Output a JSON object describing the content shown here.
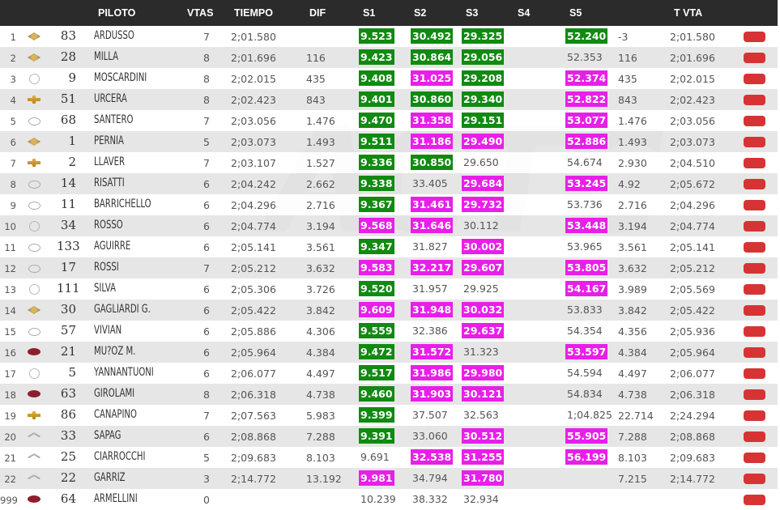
{
  "headers": {
    "piloto": "PILOTO",
    "vtas": "VTAS",
    "tiempo": "TIEMPO",
    "dif": "DIF",
    "s1": "S1",
    "s2": "S2",
    "s3": "S3",
    "s4": "S4",
    "s5": "S5",
    "tvta": "T VTA"
  },
  "colors": {
    "best_green": "#118a11",
    "personal_magenta": "#e81fe8",
    "flag_red": "#d63434",
    "header_bg": "#2b2b2b"
  },
  "rows": [
    {
      "pos": "1",
      "brand": "renault",
      "num": "83",
      "name": "ARDUSSO",
      "vtas": "7",
      "tiempo": "2;01.580",
      "dif": "",
      "s1": "9.523",
      "s1c": "g",
      "s2": "30.492",
      "s2c": "g",
      "s3": "29.325",
      "s3c": "g",
      "s5": "52.240",
      "s5c": "g",
      "x1": "-3",
      "tvta": "2;01.580"
    },
    {
      "pos": "2",
      "brand": "renault",
      "num": "28",
      "name": "MILLA",
      "vtas": "8",
      "tiempo": "2;01.696",
      "dif": "116",
      "s1": "9.423",
      "s1c": "g",
      "s2": "30.864",
      "s2c": "g",
      "s3": "29.056",
      "s3c": "g",
      "s5": "52.353",
      "s5c": "n",
      "x1": "116",
      "tvta": "2;01.696"
    },
    {
      "pos": "3",
      "brand": "vw",
      "num": "9",
      "name": "MOSCARDINI",
      "vtas": "8",
      "tiempo": "2;02.015",
      "dif": "435",
      "s1": "9.408",
      "s1c": "g",
      "s2": "31.025",
      "s2c": "m",
      "s3": "29.208",
      "s3c": "g",
      "s5": "52.374",
      "s5c": "m",
      "x1": "435",
      "tvta": "2;02.015"
    },
    {
      "pos": "4",
      "brand": "chevrolet",
      "num": "51",
      "name": "URCERA",
      "vtas": "8",
      "tiempo": "2;02.423",
      "dif": "843",
      "s1": "9.401",
      "s1c": "g",
      "s2": "30.860",
      "s2c": "g",
      "s3": "29.340",
      "s3c": "g",
      "s5": "52.822",
      "s5c": "m",
      "x1": "843",
      "tvta": "2;02.423"
    },
    {
      "pos": "5",
      "brand": "toyota",
      "num": "68",
      "name": "SANTERO",
      "vtas": "7",
      "tiempo": "2;03.056",
      "dif": "1.476",
      "s1": "9.470",
      "s1c": "g",
      "s2": "31.358",
      "s2c": "m",
      "s3": "29.151",
      "s3c": "g",
      "s5": "53.077",
      "s5c": "m",
      "x1": "1.476",
      "tvta": "2;03.056"
    },
    {
      "pos": "6",
      "brand": "renault",
      "num": "1",
      "name": "PERNIA",
      "vtas": "5",
      "tiempo": "2;03.073",
      "dif": "1.493",
      "s1": "9.511",
      "s1c": "g",
      "s2": "31.186",
      "s2c": "m",
      "s3": "29.490",
      "s3c": "m",
      "s5": "52.886",
      "s5c": "m",
      "x1": "1.493",
      "tvta": "2;03.073"
    },
    {
      "pos": "7",
      "brand": "chevrolet",
      "num": "2",
      "name": "LLAVER",
      "vtas": "7",
      "tiempo": "2;03.107",
      "dif": "1.527",
      "s1": "9.336",
      "s1c": "g",
      "s2": "30.850",
      "s2c": "g",
      "s3": "29.650",
      "s3c": "n",
      "s5": "54.674",
      "s5c": "n",
      "x1": "2.930",
      "tvta": "2;04.510"
    },
    {
      "pos": "8",
      "brand": "toyota",
      "num": "14",
      "name": "RISATTI",
      "vtas": "6",
      "tiempo": "2;04.242",
      "dif": "2.662",
      "s1": "9.338",
      "s1c": "g",
      "s2": "33.405",
      "s2c": "n",
      "s3": "29.684",
      "s3c": "m",
      "s5": "53.245",
      "s5c": "m",
      "x1": "4.92",
      "tvta": "2;05.672"
    },
    {
      "pos": "9",
      "brand": "toyota",
      "num": "11",
      "name": "BARRICHELLO",
      "vtas": "6",
      "tiempo": "2;04.296",
      "dif": "2.716",
      "s1": "9.367",
      "s1c": "g",
      "s2": "31.461",
      "s2c": "m",
      "s3": "29.732",
      "s3c": "m",
      "s5": "53.736",
      "s5c": "n",
      "x1": "2.716",
      "tvta": "2;04.296"
    },
    {
      "pos": "10",
      "brand": "vw",
      "num": "34",
      "name": "ROSSO",
      "vtas": "6",
      "tiempo": "2;04.774",
      "dif": "3.194",
      "s1": "9.568",
      "s1c": "m",
      "s2": "31.646",
      "s2c": "m",
      "s3": "30.112",
      "s3c": "n",
      "s5": "53.448",
      "s5c": "m",
      "x1": "3.194",
      "tvta": "2;04.774"
    },
    {
      "pos": "11",
      "brand": "toyota",
      "num": "133",
      "name": "AGUIRRE",
      "vtas": "6",
      "tiempo": "2;05.141",
      "dif": "3.561",
      "s1": "9.347",
      "s1c": "g",
      "s2": "31.827",
      "s2c": "n",
      "s3": "30.002",
      "s3c": "m",
      "s5": "53.965",
      "s5c": "n",
      "x1": "3.561",
      "tvta": "2;05.141"
    },
    {
      "pos": "12",
      "brand": "toyota",
      "num": "17",
      "name": "ROSSI",
      "vtas": "7",
      "tiempo": "2;05.212",
      "dif": "3.632",
      "s1": "9.583",
      "s1c": "m",
      "s2": "32.217",
      "s2c": "m",
      "s3": "29.607",
      "s3c": "m",
      "s5": "53.805",
      "s5c": "m",
      "x1": "3.632",
      "tvta": "2;05.212"
    },
    {
      "pos": "13",
      "brand": "vw",
      "num": "111",
      "name": "SILVA",
      "vtas": "6",
      "tiempo": "2;05.306",
      "dif": "3.726",
      "s1": "9.520",
      "s1c": "g",
      "s2": "31.957",
      "s2c": "n",
      "s3": "29.925",
      "s3c": "n",
      "s5": "54.167",
      "s5c": "m",
      "x1": "3.989",
      "tvta": "2;05.569"
    },
    {
      "pos": "14",
      "brand": "renault",
      "num": "30",
      "name": "GAGLIARDI G.",
      "vtas": "6",
      "tiempo": "2;05.422",
      "dif": "3.842",
      "s1": "9.609",
      "s1c": "m",
      "s2": "31.948",
      "s2c": "m",
      "s3": "30.032",
      "s3c": "m",
      "s5": "53.833",
      "s5c": "n",
      "x1": "3.842",
      "tvta": "2;05.422"
    },
    {
      "pos": "15",
      "brand": "toyota",
      "num": "57",
      "name": "VIVIAN",
      "vtas": "6",
      "tiempo": "2;05.886",
      "dif": "4.306",
      "s1": "9.559",
      "s1c": "g",
      "s2": "32.386",
      "s2c": "n",
      "s3": "29.637",
      "s3c": "m",
      "s5": "54.354",
      "s5c": "n",
      "x1": "4.356",
      "tvta": "2;05.936"
    },
    {
      "pos": "16",
      "brand": "ford",
      "num": "21",
      "name": "MU?OZ M.",
      "vtas": "6",
      "tiempo": "2;05.964",
      "dif": "4.384",
      "s1": "9.472",
      "s1c": "g",
      "s2": "31.572",
      "s2c": "m",
      "s3": "31.323",
      "s3c": "n",
      "s5": "53.597",
      "s5c": "m",
      "x1": "4.384",
      "tvta": "2;05.964"
    },
    {
      "pos": "17",
      "brand": "vw",
      "num": "5",
      "name": "YANNANTUONI",
      "vtas": "6",
      "tiempo": "2;06.077",
      "dif": "4.497",
      "s1": "9.517",
      "s1c": "g",
      "s2": "31.986",
      "s2c": "m",
      "s3": "29.980",
      "s3c": "m",
      "s5": "54.594",
      "s5c": "n",
      "x1": "4.497",
      "tvta": "2;06.077"
    },
    {
      "pos": "18",
      "brand": "ford",
      "num": "63",
      "name": "GIROLAMI",
      "vtas": "8",
      "tiempo": "2;06.318",
      "dif": "4.738",
      "s1": "9.460",
      "s1c": "g",
      "s2": "31.903",
      "s2c": "m",
      "s3": "30.121",
      "s3c": "m",
      "s5": "54.834",
      "s5c": "n",
      "x1": "4.738",
      "tvta": "2;06.318"
    },
    {
      "pos": "19",
      "brand": "chevrolet",
      "num": "86",
      "name": "CANAPINO",
      "vtas": "7",
      "tiempo": "2;07.563",
      "dif": "5.983",
      "s1": "9.399",
      "s1c": "g",
      "s2": "37.507",
      "s2c": "n",
      "s3": "32.563",
      "s3c": "n",
      "s5": "1;04.825",
      "s5c": "n",
      "x1": "22.714",
      "tvta": "2;24.294"
    },
    {
      "pos": "20",
      "brand": "citroen",
      "num": "33",
      "name": "SAPAG",
      "vtas": "6",
      "tiempo": "2;08.868",
      "dif": "7.288",
      "s1": "9.391",
      "s1c": "g",
      "s2": "33.060",
      "s2c": "n",
      "s3": "30.512",
      "s3c": "m",
      "s5": "55.905",
      "s5c": "m",
      "x1": "7.288",
      "tvta": "2;08.868"
    },
    {
      "pos": "21",
      "brand": "citroen",
      "num": "25",
      "name": "CIARROCCHI",
      "vtas": "5",
      "tiempo": "2;09.683",
      "dif": "8.103",
      "s1": "9.691",
      "s1c": "n",
      "s2": "32.538",
      "s2c": "m",
      "s3": "31.255",
      "s3c": "m",
      "s5": "56.199",
      "s5c": "m",
      "x1": "8.103",
      "tvta": "2;09.683"
    },
    {
      "pos": "22",
      "brand": "citroen",
      "num": "22",
      "name": "GARRIZ",
      "vtas": "3",
      "tiempo": "2;14.772",
      "dif": "13.192",
      "s1": "9.981",
      "s1c": "m",
      "s2": "34.794",
      "s2c": "n",
      "s3": "31.780",
      "s3c": "m",
      "s5": "",
      "s5c": "n",
      "x1": "7.215",
      "tvta": "2;14.772"
    },
    {
      "pos": "999",
      "brand": "ford",
      "num": "64",
      "name": "ARMELLINI",
      "vtas": "0",
      "tiempo": "",
      "dif": "",
      "s1": "10.239",
      "s1c": "n",
      "s2": "38.332",
      "s2c": "n",
      "s3": "32.934",
      "s3c": "n",
      "s5": "",
      "s5c": "n",
      "x1": "",
      "tvta": ""
    }
  ]
}
